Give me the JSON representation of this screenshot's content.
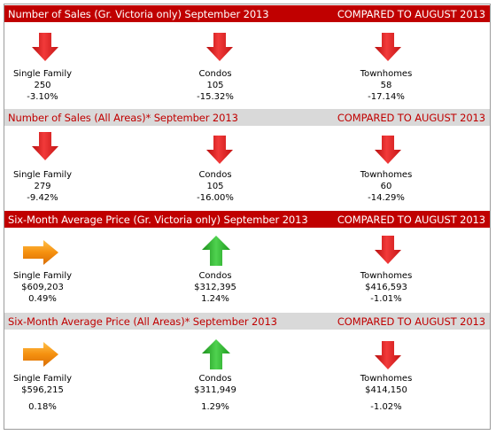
{
  "colors": {
    "header_dark_bg": "#c00000",
    "header_light_bg": "#d9d9d9",
    "accent_red": "#c00000",
    "down_arrow": "#e02020",
    "up_arrow": "#2bb52b",
    "flat_arrow": "#f0900f"
  },
  "sections": [
    {
      "title": "Number of Sales (Gr. Victoria only) September 2013",
      "compared": "COMPARED TO AUGUST 2013",
      "items": [
        {
          "label": "Single Family",
          "value": "250",
          "change": "-3.10%",
          "arrow": "down-arrow-icon"
        },
        {
          "label": "Condos",
          "value": "105",
          "change": "-15.32%",
          "arrow": "down-arrow-icon"
        },
        {
          "label": "Townhomes",
          "value": "58",
          "change": "-17.14%",
          "arrow": "down-arrow-icon"
        }
      ]
    },
    {
      "title": "Number of Sales (All Areas)* September  2013",
      "compared": "COMPARED TO AUGUST 2013",
      "items": [
        {
          "label": "Single Family",
          "value": "279",
          "change": "-9.42%",
          "arrow": "down-arrow-icon"
        },
        {
          "label": "Condos",
          "value": "105",
          "change": "-16.00%",
          "arrow": "down-arrow-icon"
        },
        {
          "label": "Townhomes",
          "value": "60",
          "change": "-14.29%",
          "arrow": "down-arrow-icon"
        }
      ]
    },
    {
      "title": "Six-Month Average Price (Gr. Victoria only) September 2013",
      "compared": "COMPARED TO AUGUST 2013",
      "items": [
        {
          "label": "Single Family",
          "value": "$609,203",
          "change": "0.49%",
          "arrow": "right-arrow-icon"
        },
        {
          "label": "Condos",
          "value": "$312,395",
          "change": "1.24%",
          "arrow": "up-arrow-icon"
        },
        {
          "label": "Townhomes",
          "value": "$416,593",
          "change": "-1.01%",
          "arrow": "down-arrow-icon"
        }
      ]
    },
    {
      "title": "Six-Month Average Price (All Areas)* September 2013",
      "compared": "COMPARED TO AUGUST 2013",
      "items": [
        {
          "label": "Single Family",
          "value": "$596,215",
          "change": "0.18%",
          "arrow": "right-arrow-icon"
        },
        {
          "label": "Condos",
          "value": "$311,949",
          "change": "1.29%",
          "arrow": "up-arrow-icon"
        },
        {
          "label": "Townhomes",
          "value": "$414,150",
          "change": "-1.02%",
          "arrow": "down-arrow-icon"
        }
      ]
    }
  ]
}
